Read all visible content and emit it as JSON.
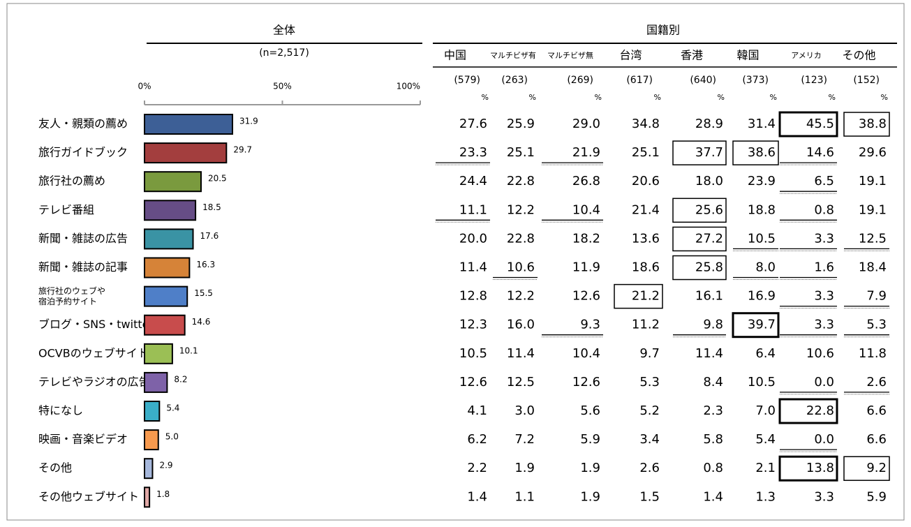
{
  "chart_data": {
    "type": "bar",
    "orientation": "horizontal",
    "title": "全体",
    "subtitle": "(n=2,517)",
    "categories": [
      "友人・親類の薦め",
      "旅行ガイドブック",
      "旅行社の薦め",
      "テレビ番組",
      "新聞・雑誌の広告",
      "新聞・雑誌の記事",
      "旅行社のウェブや\n宿泊予約サイト",
      "ブログ・SNS・twitter",
      "OCVBのウェブサイト",
      "テレビやラジオの広告",
      "特になし",
      "映画・音楽ビデオ",
      "その他",
      "その他ウェブサイト"
    ],
    "values": [
      31.9,
      29.7,
      20.5,
      18.5,
      17.6,
      16.3,
      15.5,
      14.6,
      10.1,
      8.2,
      5.4,
      5.0,
      2.9,
      1.8
    ],
    "value_labels": [
      "31.9",
      "29.7",
      "20.5",
      "18.5",
      "17.6",
      "16.3",
      "15.5",
      "14.6",
      "10.1",
      "8.2",
      "5.4",
      "5.0",
      "2.9",
      "1.8"
    ],
    "colors": [
      "#3d5f96",
      "#a33e3e",
      "#7a9a3e",
      "#664d86",
      "#3a93a4",
      "#d68338",
      "#4f7fc8",
      "#c84c4c",
      "#9bbf55",
      "#7e62a8",
      "#3aaec8",
      "#f79a4e",
      "#a6b8dc",
      "#e0a8a6"
    ],
    "xlim": [
      0,
      100
    ],
    "xticks": [
      {
        "value": 0,
        "label": "0%"
      },
      {
        "value": 50,
        "label": "50%"
      },
      {
        "value": 100,
        "label": "100%"
      }
    ]
  },
  "table": {
    "title": "国籍別",
    "unit": "%",
    "columns": [
      {
        "name": "中国",
        "n": "(579)"
      },
      {
        "name": "マルチビザ有",
        "n": "(263)"
      },
      {
        "name": "マルチビザ無",
        "n": "(269)"
      },
      {
        "name": "台湾",
        "n": "(617)"
      },
      {
        "name": "香港",
        "n": "(640)"
      },
      {
        "name": "韓国",
        "n": "(373)"
      },
      {
        "name": "アメリカ",
        "n": "(123)"
      },
      {
        "name": "その他",
        "n": "(152)"
      }
    ],
    "rows": [
      [
        "27.6",
        "25.9",
        "29.0",
        "34.8",
        "28.9",
        "31.4",
        "45.5",
        "38.8"
      ],
      [
        "23.3",
        "25.1",
        "21.9",
        "25.1",
        "37.7",
        "38.6",
        "14.6",
        "29.6"
      ],
      [
        "24.4",
        "22.8",
        "26.8",
        "20.6",
        "18.0",
        "23.9",
        "6.5",
        "19.1"
      ],
      [
        "11.1",
        "12.2",
        "10.4",
        "21.4",
        "25.6",
        "18.8",
        "0.8",
        "19.1"
      ],
      [
        "20.0",
        "22.8",
        "18.2",
        "13.6",
        "27.2",
        "10.5",
        "3.3",
        "12.5"
      ],
      [
        "11.4",
        "10.6",
        "11.9",
        "18.6",
        "25.8",
        "8.0",
        "1.6",
        "18.4"
      ],
      [
        "12.8",
        "12.2",
        "12.6",
        "21.2",
        "16.1",
        "16.9",
        "3.3",
        "7.9"
      ],
      [
        "12.3",
        "16.0",
        "9.3",
        "11.2",
        "9.8",
        "39.7",
        "3.3",
        "5.3"
      ],
      [
        "10.5",
        "11.4",
        "10.4",
        "9.7",
        "11.4",
        "6.4",
        "10.6",
        "11.8"
      ],
      [
        "12.6",
        "12.5",
        "12.6",
        "5.3",
        "8.4",
        "10.5",
        "0.0",
        "2.6"
      ],
      [
        "4.1",
        "3.0",
        "5.6",
        "5.2",
        "2.3",
        "7.0",
        "22.8",
        "6.6"
      ],
      [
        "6.2",
        "7.2",
        "5.9",
        "3.4",
        "5.8",
        "5.4",
        "0.0",
        "6.6"
      ],
      [
        "2.2",
        "1.9",
        "1.9",
        "2.6",
        "0.8",
        "2.1",
        "13.8",
        "9.2"
      ],
      [
        "1.4",
        "1.1",
        "1.9",
        "1.5",
        "1.4",
        "1.3",
        "3.3",
        "5.9"
      ]
    ],
    "thick_box": [
      [
        0,
        6
      ],
      [
        7,
        5
      ],
      [
        10,
        6
      ],
      [
        12,
        6
      ]
    ],
    "thin_box": [
      [
        0,
        7
      ],
      [
        1,
        4
      ],
      [
        1,
        5
      ],
      [
        3,
        4
      ],
      [
        4,
        4
      ],
      [
        5,
        4
      ],
      [
        6,
        3
      ],
      [
        12,
        7
      ]
    ],
    "underline": [
      [
        1,
        0
      ],
      [
        1,
        2
      ],
      [
        1,
        6
      ],
      [
        2,
        6
      ],
      [
        3,
        0
      ],
      [
        3,
        2
      ],
      [
        3,
        6
      ],
      [
        4,
        5
      ],
      [
        4,
        6
      ],
      [
        4,
        7
      ],
      [
        5,
        1
      ],
      [
        5,
        5
      ],
      [
        5,
        6
      ],
      [
        6,
        6
      ],
      [
        6,
        7
      ],
      [
        7,
        2
      ],
      [
        7,
        4
      ],
      [
        7,
        6
      ],
      [
        7,
        7
      ],
      [
        9,
        6
      ],
      [
        9,
        7
      ],
      [
        11,
        6
      ]
    ]
  }
}
